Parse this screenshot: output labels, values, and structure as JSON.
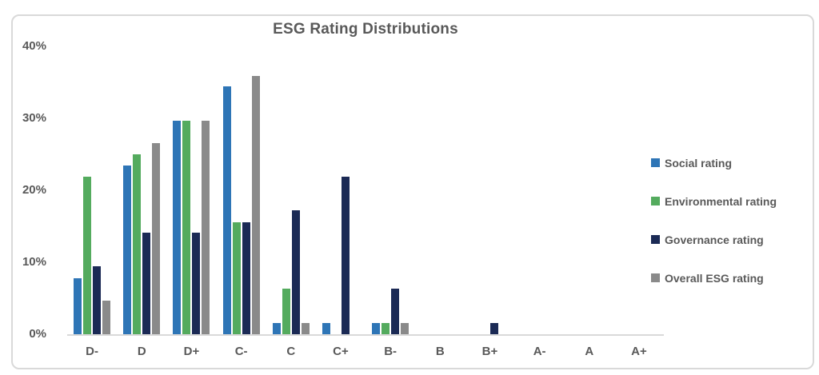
{
  "colors": {
    "text": "#595959",
    "axis_line": "#D9D9D9",
    "card_border": "#D9D9D9",
    "background": "#FFFFFF"
  },
  "chart_data": {
    "type": "bar",
    "title": "ESG Rating Distributions",
    "xlabel": "",
    "ylabel": "",
    "categories": [
      "D-",
      "D",
      "D+",
      "C-",
      "C",
      "C+",
      "B-",
      "B",
      "B+",
      "A-",
      "A",
      "A+"
    ],
    "series": [
      {
        "name": "Social rating",
        "color": "#2E75B6",
        "values": [
          7.8,
          23.4,
          29.7,
          34.4,
          1.6,
          1.6,
          1.6,
          0,
          0,
          0,
          0,
          0
        ]
      },
      {
        "name": "Environmental rating",
        "color": "#54AB5E",
        "values": [
          21.9,
          25.0,
          29.7,
          15.6,
          6.3,
          0,
          1.6,
          0,
          0,
          0,
          0,
          0
        ]
      },
      {
        "name": "Governance rating",
        "color": "#1B2A55",
        "values": [
          9.4,
          14.1,
          14.1,
          15.6,
          17.2,
          21.9,
          6.3,
          0,
          1.6,
          0,
          0,
          0
        ]
      },
      {
        "name": "Overall ESG rating",
        "color": "#8A8A8A",
        "values": [
          4.7,
          26.6,
          29.7,
          35.9,
          1.6,
          0,
          1.6,
          0,
          0,
          0,
          0,
          0
        ]
      }
    ],
    "ylim": [
      0,
      40
    ],
    "yticks": [
      0,
      10,
      20,
      30,
      40
    ],
    "ytick_suffix": "%",
    "grid": false,
    "legend_position": "right"
  }
}
